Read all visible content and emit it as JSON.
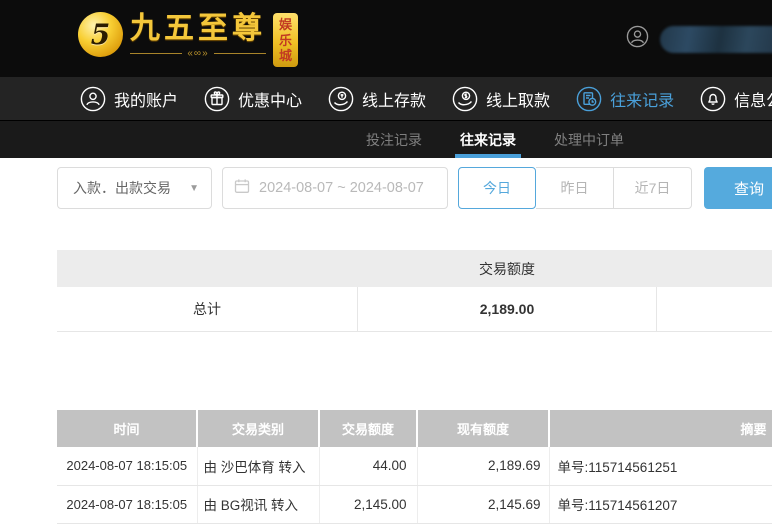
{
  "brand": {
    "logo_glyph": "5",
    "title": "九五至尊",
    "flourish": "«∞»",
    "badge_chars": "娱乐城",
    "gold_color": "#f4c73b",
    "badge_text_color": "#c23a22"
  },
  "nav": {
    "active_color": "#4aa0da",
    "items": [
      {
        "label": "我的账户",
        "icon": "user-icon",
        "active": false
      },
      {
        "label": "优惠中心",
        "icon": "gift-icon",
        "active": false
      },
      {
        "label": "线上存款",
        "icon": "deposit-hand-coin-icon",
        "active": false
      },
      {
        "label": "线上取款",
        "icon": "withdraw-hand-coin-icon",
        "active": false
      },
      {
        "label": "往来记录",
        "icon": "records-doc-clock-icon",
        "active": true
      },
      {
        "label": "信息公告",
        "icon": "bell-icon",
        "active": false
      }
    ]
  },
  "subnav": {
    "tabs": [
      {
        "label": "投注记录",
        "active": false
      },
      {
        "label": "往来记录",
        "active": true
      },
      {
        "label": "处理中订单",
        "active": false
      }
    ],
    "underline_color": "#4aa0da"
  },
  "filters": {
    "type_select": {
      "value": "入款．出款交易",
      "icon": "dropdown-arrow-icon"
    },
    "date_range": {
      "value": "2024-08-07 ~ 2024-08-07",
      "icon": "calendar-icon"
    },
    "quick_buttons": [
      {
        "label": "今日",
        "active": true
      },
      {
        "label": "昨日",
        "active": false
      },
      {
        "label": "近7日",
        "active": false
      }
    ],
    "search_label": "查询",
    "accent_color": "#55aadd"
  },
  "summary_table": {
    "header_label": "交易额度",
    "total_label": "总计",
    "total_value": "2,189.00"
  },
  "records_table": {
    "columns": [
      "时间",
      "交易类别",
      "交易额度",
      "现有额度",
      "摘要"
    ],
    "rows": [
      {
        "time": "2024-08-07 18:15:05",
        "type": "由 沙巴体育 转入",
        "amount": "44.00",
        "balance": "2,189.69",
        "summary": "单号:115714561251"
      },
      {
        "time": "2024-08-07 18:15:05",
        "type": "由 BG视讯 转入",
        "amount": "2,145.00",
        "balance": "2,145.69",
        "summary": "单号:115714561207"
      }
    ]
  }
}
